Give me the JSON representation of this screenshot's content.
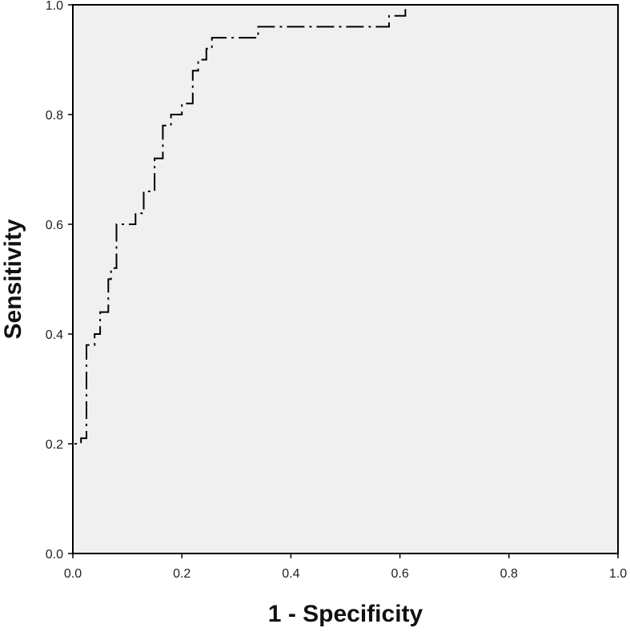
{
  "chart_data": {
    "type": "line",
    "title": "",
    "xlabel": "1 - Specificity",
    "ylabel": "Sensitivity",
    "xlim": [
      0.0,
      1.0
    ],
    "ylim": [
      0.0,
      1.0
    ],
    "x_ticks": [
      "0.0",
      "0.2",
      "0.4",
      "0.6",
      "0.8",
      "1.0"
    ],
    "y_ticks": [
      "0.0",
      "0.2",
      "0.4",
      "0.6",
      "0.8",
      "1.0"
    ],
    "grid": false,
    "legend": "none",
    "plot_background": "#f0f0f0",
    "line_color": "#000000",
    "line_style": "dash-dot",
    "series": [
      {
        "x": [
          0.0,
          0.0,
          0.015,
          0.015,
          0.025,
          0.025,
          0.04,
          0.04,
          0.05,
          0.05,
          0.065,
          0.065,
          0.07,
          0.07,
          0.08,
          0.08,
          0.115,
          0.115,
          0.13,
          0.13,
          0.15,
          0.15,
          0.165,
          0.165,
          0.18,
          0.18,
          0.2,
          0.2,
          0.22,
          0.22,
          0.23,
          0.23,
          0.245,
          0.245,
          0.255,
          0.255,
          0.3,
          0.3,
          0.34,
          0.34,
          0.58,
          0.58,
          0.6,
          0.6,
          0.61,
          0.61,
          0.86,
          0.86,
          1.0
        ],
        "y": [
          0.0,
          0.2,
          0.2,
          0.21,
          0.21,
          0.38,
          0.38,
          0.4,
          0.4,
          0.44,
          0.44,
          0.5,
          0.5,
          0.52,
          0.52,
          0.6,
          0.6,
          0.62,
          0.62,
          0.66,
          0.66,
          0.72,
          0.72,
          0.78,
          0.78,
          0.8,
          0.8,
          0.82,
          0.82,
          0.88,
          0.88,
          0.9,
          0.9,
          0.92,
          0.92,
          0.94,
          0.94,
          0.94,
          0.94,
          0.96,
          0.96,
          0.98,
          0.98,
          0.98,
          0.98,
          1.0,
          1.0,
          1.0,
          1.0
        ]
      }
    ]
  }
}
